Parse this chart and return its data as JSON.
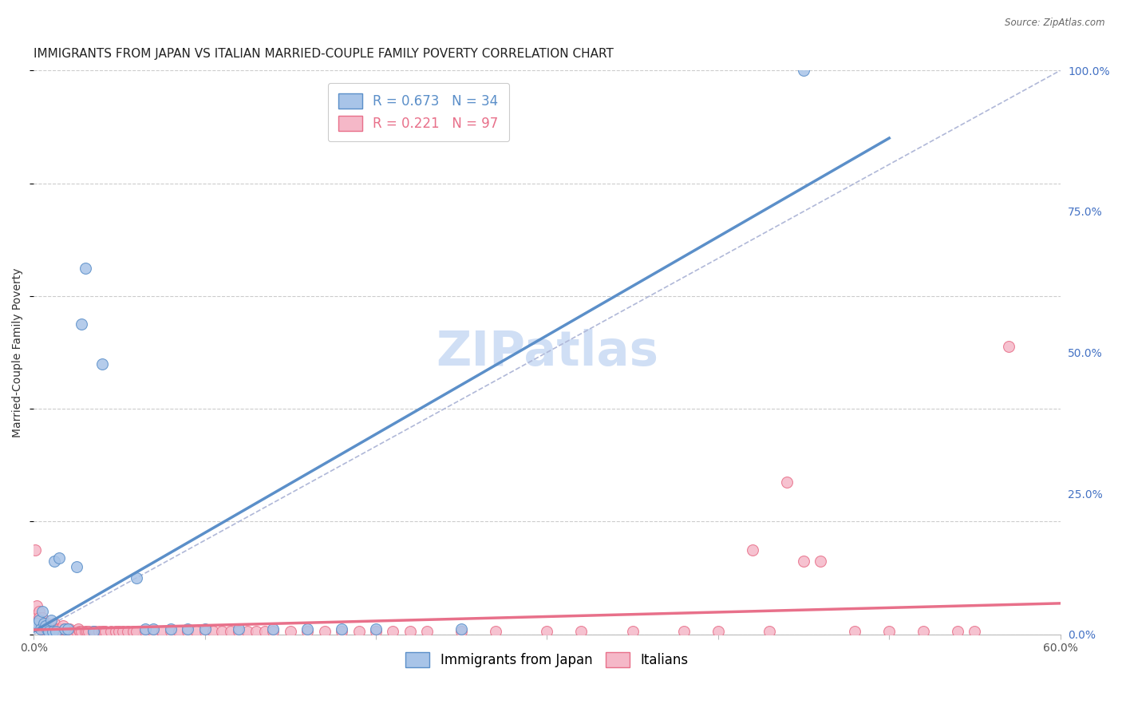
{
  "title": "IMMIGRANTS FROM JAPAN VS ITALIAN MARRIED-COUPLE FAMILY POVERTY CORRELATION CHART",
  "source": "Source: ZipAtlas.com",
  "ylabel": "Married-Couple Family Poverty",
  "xlim": [
    0,
    0.6
  ],
  "ylim": [
    0,
    1.0
  ],
  "yticks_right": [
    0.0,
    0.25,
    0.5,
    0.75,
    1.0
  ],
  "yticklabels_right": [
    "0.0%",
    "25.0%",
    "50.0%",
    "75.0%",
    "100.0%"
  ],
  "japan_color": "#a8c4e8",
  "japan_color_dark": "#5b8fc9",
  "italian_color": "#f5b8c8",
  "italian_color_dark": "#e8708a",
  "japan_R": 0.673,
  "japan_N": 34,
  "italian_R": 0.221,
  "italian_N": 97,
  "japan_line_x": [
    0.0,
    0.5
  ],
  "japan_line_y": [
    0.005,
    0.88
  ],
  "italian_line_x": [
    0.0,
    0.6
  ],
  "italian_line_y": [
    0.008,
    0.055
  ],
  "dash_line_x": [
    0.0,
    0.6
  ],
  "dash_line_y": [
    0.0,
    1.0
  ],
  "japan_scatter_x": [
    0.001,
    0.002,
    0.003,
    0.004,
    0.005,
    0.006,
    0.007,
    0.008,
    0.009,
    0.01,
    0.011,
    0.012,
    0.013,
    0.015,
    0.018,
    0.02,
    0.025,
    0.028,
    0.03,
    0.035,
    0.04,
    0.06,
    0.065,
    0.07,
    0.08,
    0.09,
    0.1,
    0.12,
    0.14,
    0.16,
    0.18,
    0.2,
    0.25,
    0.45
  ],
  "japan_scatter_y": [
    0.015,
    0.02,
    0.025,
    0.01,
    0.04,
    0.02,
    0.015,
    0.01,
    0.005,
    0.025,
    0.005,
    0.13,
    0.005,
    0.135,
    0.01,
    0.01,
    0.12,
    0.55,
    0.65,
    0.005,
    0.48,
    0.1,
    0.01,
    0.01,
    0.01,
    0.01,
    0.01,
    0.01,
    0.01,
    0.01,
    0.01,
    0.01,
    0.01,
    1.0
  ],
  "italian_scatter_x": [
    0.001,
    0.002,
    0.002,
    0.003,
    0.003,
    0.004,
    0.004,
    0.005,
    0.005,
    0.005,
    0.006,
    0.006,
    0.007,
    0.007,
    0.008,
    0.008,
    0.009,
    0.009,
    0.01,
    0.01,
    0.011,
    0.012,
    0.012,
    0.013,
    0.014,
    0.015,
    0.015,
    0.016,
    0.017,
    0.018,
    0.02,
    0.021,
    0.022,
    0.023,
    0.025,
    0.026,
    0.027,
    0.028,
    0.03,
    0.031,
    0.032,
    0.035,
    0.036,
    0.038,
    0.04,
    0.041,
    0.042,
    0.045,
    0.048,
    0.05,
    0.052,
    0.055,
    0.058,
    0.06,
    0.065,
    0.07,
    0.075,
    0.08,
    0.085,
    0.09,
    0.095,
    0.1,
    0.105,
    0.11,
    0.115,
    0.12,
    0.125,
    0.13,
    0.135,
    0.14,
    0.15,
    0.16,
    0.17,
    0.18,
    0.19,
    0.2,
    0.21,
    0.22,
    0.23,
    0.25,
    0.27,
    0.3,
    0.32,
    0.35,
    0.38,
    0.4,
    0.42,
    0.43,
    0.44,
    0.45,
    0.46,
    0.48,
    0.5,
    0.52,
    0.54,
    0.55,
    0.57
  ],
  "italian_scatter_y": [
    0.15,
    0.05,
    0.03,
    0.04,
    0.03,
    0.02,
    0.025,
    0.01,
    0.02,
    0.03,
    0.01,
    0.02,
    0.015,
    0.01,
    0.005,
    0.02,
    0.01,
    0.005,
    0.01,
    0.015,
    0.01,
    0.02,
    0.005,
    0.01,
    0.005,
    0.01,
    0.005,
    0.01,
    0.015,
    0.01,
    0.005,
    0.01,
    0.005,
    0.005,
    0.005,
    0.01,
    0.005,
    0.005,
    0.005,
    0.005,
    0.005,
    0.005,
    0.005,
    0.005,
    0.005,
    0.005,
    0.005,
    0.005,
    0.005,
    0.005,
    0.005,
    0.005,
    0.005,
    0.005,
    0.005,
    0.005,
    0.005,
    0.005,
    0.005,
    0.005,
    0.005,
    0.005,
    0.005,
    0.005,
    0.005,
    0.005,
    0.005,
    0.005,
    0.005,
    0.005,
    0.005,
    0.005,
    0.005,
    0.005,
    0.005,
    0.005,
    0.005,
    0.005,
    0.005,
    0.005,
    0.005,
    0.005,
    0.005,
    0.005,
    0.005,
    0.005,
    0.15,
    0.005,
    0.27,
    0.13,
    0.13,
    0.005,
    0.005,
    0.005,
    0.005,
    0.005,
    0.51
  ],
  "watermark": "ZIPatlas",
  "watermark_color": "#d0dff5",
  "background_color": "#ffffff",
  "grid_color": "#cccccc",
  "title_fontsize": 11,
  "axis_label_fontsize": 10,
  "tick_fontsize": 10,
  "legend_fontsize": 12
}
